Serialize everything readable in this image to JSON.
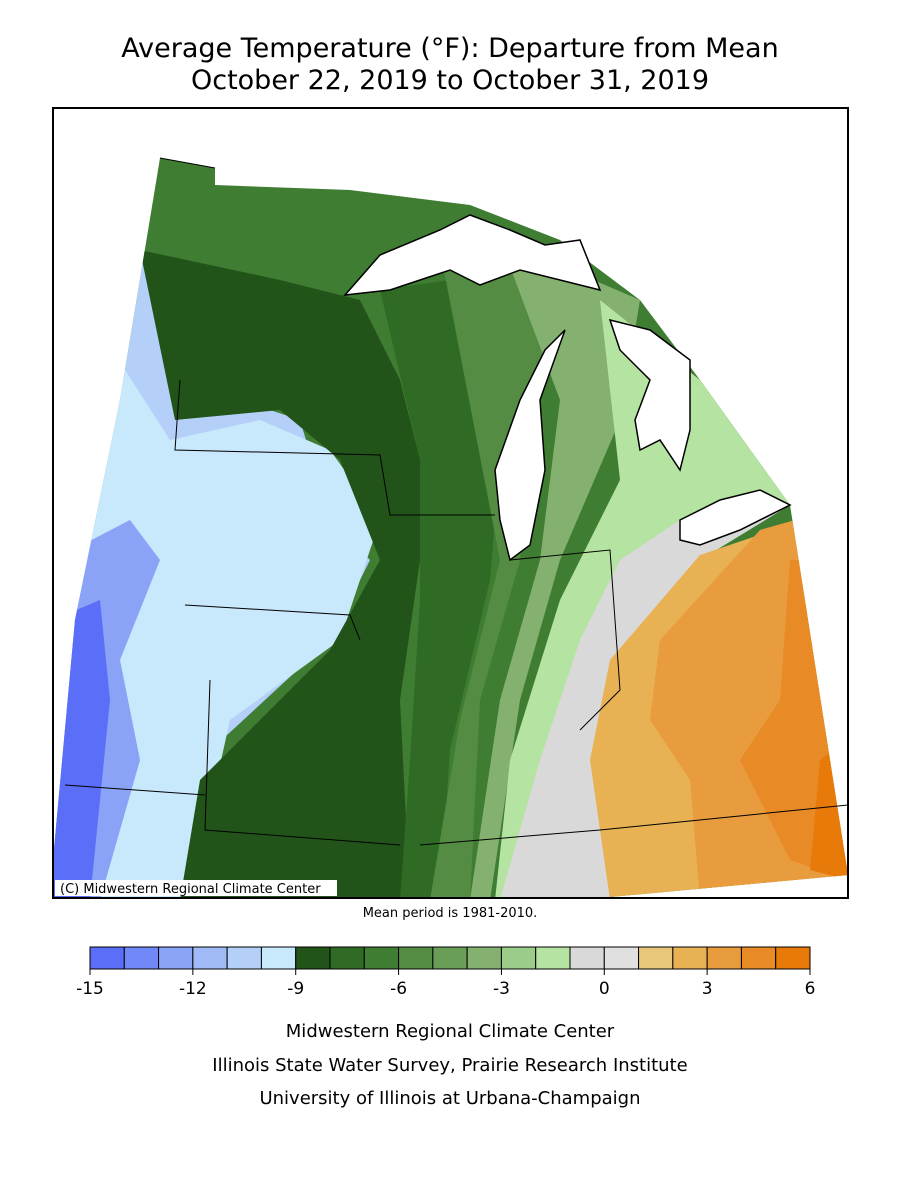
{
  "title": "Average Temperature (°F): Departure from Mean",
  "subtitle": "October 22, 2019 to October 31, 2019",
  "copyright": "(C) Midwestern Regional Climate Center",
  "note": "Mean period is 1981-2010.",
  "legend": {
    "bins": [
      -15,
      -14,
      -13,
      -12,
      -11,
      -10,
      -9,
      -8,
      -7,
      -6,
      -5,
      -4,
      -3,
      -2,
      -1,
      0,
      1,
      2,
      3,
      4,
      5,
      6
    ],
    "colors": [
      "#5b6ef8",
      "#7189f8",
      "#8aa3f7",
      "#9fbaf7",
      "#b4d0f9",
      "#c8e8fc",
      "#22541a",
      "#2f6b24",
      "#3f7d33",
      "#548c44",
      "#6a9d58",
      "#84b16f",
      "#9ccc89",
      "#b5e3a1",
      "#d9d9d9",
      "#e0e0e0",
      "#e8c77a",
      "#e8b154",
      "#e89c3d",
      "#e88a25",
      "#e87a0a"
    ],
    "ticks": [
      -15,
      -12,
      -9,
      -6,
      -3,
      0,
      3,
      6
    ]
  },
  "footer": [
    "Midwestern Regional Climate Center",
    "Illinois State Water Survey, Prairie Research Institute",
    "University of Illinois at Urbana-Champaign"
  ]
}
